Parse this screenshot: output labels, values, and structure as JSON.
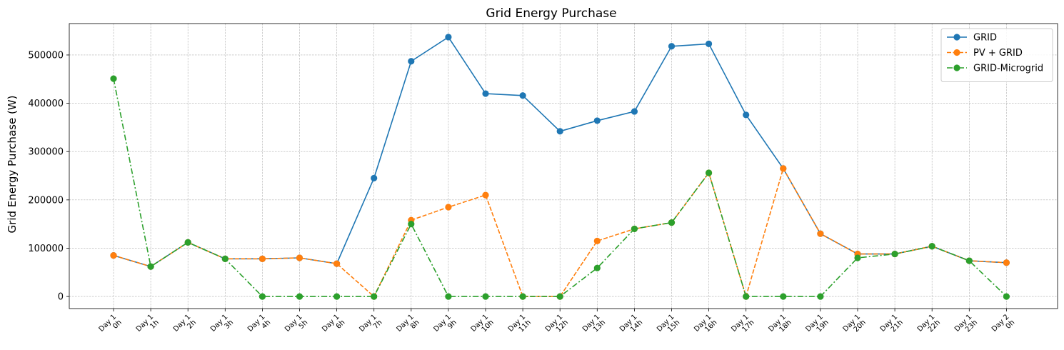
{
  "chart_data": {
    "type": "line",
    "title": "Grid Energy Purchase",
    "xlabel": "",
    "ylabel": "Grid Energy Purchase (W)",
    "ylim": [
      -25000,
      565000
    ],
    "yticks": [
      0,
      100000,
      200000,
      300000,
      400000,
      500000
    ],
    "ytick_labels": [
      "0",
      "100000",
      "200000",
      "300000",
      "400000",
      "500000"
    ],
    "grid": true,
    "legend_position": "top-right",
    "categories": [
      [
        "Day 1",
        "0h"
      ],
      [
        "Day 1",
        "1h"
      ],
      [
        "Day 1",
        "2h"
      ],
      [
        "Day 1",
        "3h"
      ],
      [
        "Day 1",
        "4h"
      ],
      [
        "Day 1",
        "5h"
      ],
      [
        "Day 1",
        "6h"
      ],
      [
        "Day 1",
        "7h"
      ],
      [
        "Day 1",
        "8h"
      ],
      [
        "Day 1",
        "9h"
      ],
      [
        "Day 1",
        "10h"
      ],
      [
        "Day 1",
        "11h"
      ],
      [
        "Day 1",
        "12h"
      ],
      [
        "Day 1",
        "13h"
      ],
      [
        "Day 1",
        "14h"
      ],
      [
        "Day 1",
        "15h"
      ],
      [
        "Day 1",
        "16h"
      ],
      [
        "Day 1",
        "17h"
      ],
      [
        "Day 1",
        "18h"
      ],
      [
        "Day 1",
        "19h"
      ],
      [
        "Day 1",
        "20h"
      ],
      [
        "Day 1",
        "21h"
      ],
      [
        "Day 1",
        "22h"
      ],
      [
        "Day 1",
        "23h"
      ],
      [
        "Day 2",
        "0h"
      ]
    ],
    "series": [
      {
        "name": "GRID",
        "color": "#1f77b4",
        "linestyle": "solid",
        "values": [
          85000,
          62000,
          112000,
          78000,
          78000,
          80000,
          68000,
          245000,
          487000,
          537000,
          420000,
          416000,
          342000,
          364000,
          383000,
          518000,
          523000,
          376000,
          265000,
          130000,
          88000,
          88000,
          104000,
          74000,
          70000
        ]
      },
      {
        "name": "PV + GRID",
        "color": "#ff7f0e",
        "linestyle": "dashed",
        "values": [
          85000,
          62000,
          112000,
          78000,
          78000,
          80000,
          68000,
          0,
          158000,
          185000,
          210000,
          0,
          0,
          115000,
          140000,
          153000,
          256000,
          0,
          265000,
          130000,
          88000,
          88000,
          104000,
          74000,
          70000
        ]
      },
      {
        "name": "GRID-Microgrid",
        "color": "#2ca02c",
        "linestyle": "dashdot",
        "values": [
          451000,
          62000,
          112000,
          78000,
          0,
          0,
          0,
          0,
          150000,
          0,
          0,
          0,
          0,
          59000,
          140000,
          153000,
          256000,
          0,
          0,
          0,
          80000,
          88000,
          104000,
          74000,
          0
        ]
      }
    ]
  }
}
